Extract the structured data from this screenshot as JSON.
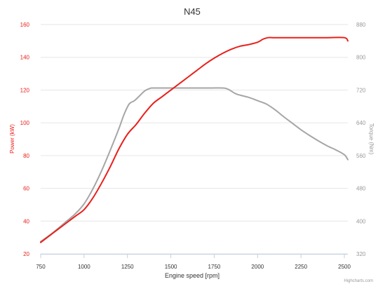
{
  "chart_data": {
    "type": "line",
    "title": "N45",
    "xlabel": "Engine speed [rpm]",
    "x_ticks": [
      "750",
      "1000",
      "1250",
      "1500",
      "1750",
      "2000",
      "2250",
      "2500"
    ],
    "xlim": [
      750,
      2520
    ],
    "y_left": {
      "label": "Power (kW)",
      "ticks": [
        "20",
        "40",
        "60",
        "80",
        "100",
        "120",
        "140",
        "160"
      ],
      "ylim": [
        20,
        160
      ],
      "color": "#e8201c"
    },
    "y_right": {
      "label": "Torque (Nm)",
      "ticks": [
        "320",
        "400",
        "480",
        "560",
        "640",
        "720",
        "800",
        "880"
      ],
      "ylim": [
        320,
        880
      ],
      "color": "#999999"
    },
    "grid": true,
    "series": [
      {
        "axis": "left",
        "color": "#e8201c",
        "points": [
          [
            750,
            27
          ],
          [
            800,
            31
          ],
          [
            850,
            35
          ],
          [
            900,
            39
          ],
          [
            950,
            43
          ],
          [
            1000,
            47
          ],
          [
            1050,
            54
          ],
          [
            1100,
            63
          ],
          [
            1150,
            73
          ],
          [
            1200,
            84
          ],
          [
            1250,
            93
          ],
          [
            1300,
            99
          ],
          [
            1350,
            106
          ],
          [
            1400,
            112
          ],
          [
            1450,
            116
          ],
          [
            1500,
            120
          ],
          [
            1550,
            124
          ],
          [
            1600,
            128
          ],
          [
            1650,
            132
          ],
          [
            1700,
            136
          ],
          [
            1750,
            139.5
          ],
          [
            1800,
            142.5
          ],
          [
            1850,
            145
          ],
          [
            1900,
            146.8
          ],
          [
            1950,
            147.8
          ],
          [
            2000,
            149.2
          ],
          [
            2030,
            151
          ],
          [
            2060,
            152
          ],
          [
            2100,
            152
          ],
          [
            2200,
            152
          ],
          [
            2300,
            152
          ],
          [
            2400,
            152
          ],
          [
            2500,
            152
          ],
          [
            2520,
            150
          ]
        ]
      },
      {
        "axis": "right",
        "color": "#a6a6a6",
        "points": [
          [
            750,
            350
          ],
          [
            800,
            365
          ],
          [
            850,
            382
          ],
          [
            900,
            400
          ],
          [
            950,
            418
          ],
          [
            1000,
            442
          ],
          [
            1050,
            478
          ],
          [
            1100,
            522
          ],
          [
            1150,
            572
          ],
          [
            1200,
            625
          ],
          [
            1230,
            660
          ],
          [
            1260,
            686
          ],
          [
            1290,
            694
          ],
          [
            1320,
            706
          ],
          [
            1350,
            718
          ],
          [
            1380,
            724
          ],
          [
            1400,
            725
          ],
          [
            1500,
            725
          ],
          [
            1600,
            725
          ],
          [
            1700,
            725
          ],
          [
            1800,
            725
          ],
          [
            1830,
            722
          ],
          [
            1850,
            717
          ],
          [
            1880,
            710
          ],
          [
            1950,
            702
          ],
          [
            2000,
            694
          ],
          [
            2050,
            686
          ],
          [
            2100,
            672
          ],
          [
            2150,
            655
          ],
          [
            2200,
            639
          ],
          [
            2250,
            623
          ],
          [
            2300,
            609
          ],
          [
            2350,
            596
          ],
          [
            2400,
            584
          ],
          [
            2450,
            574
          ],
          [
            2500,
            562
          ],
          [
            2520,
            550
          ]
        ]
      }
    ]
  },
  "credits": "Highcharts.com"
}
